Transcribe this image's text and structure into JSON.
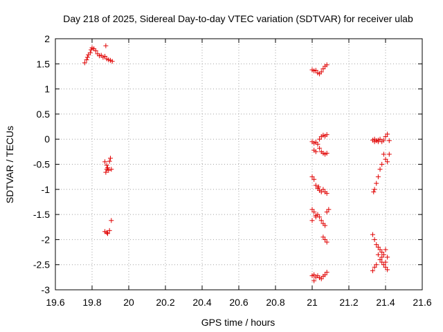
{
  "chart_data": {
    "type": "scatter",
    "title": "Day 218 of 2025, Sidereal Day-to-day VTEC variation (SDTVAR) for receiver ulab",
    "xlabel": "GPS time / hours",
    "ylabel": "SDTVAR / TECUs",
    "xlim": [
      19.6,
      21.6
    ],
    "ylim": [
      -3,
      2
    ],
    "xticks": [
      19.6,
      19.8,
      20,
      20.2,
      20.4,
      20.6,
      20.8,
      21,
      21.2,
      21.4,
      21.6
    ],
    "xtick_labels": [
      "19.6",
      "19.8",
      "20",
      "20.2",
      "20.4",
      "20.6",
      "20.8",
      "21",
      "21.2",
      "21.4",
      "21.6"
    ],
    "yticks": [
      -3,
      -2.5,
      -2,
      -1.5,
      -1,
      -0.5,
      0,
      0.5,
      1,
      1.5,
      2
    ],
    "ytick_labels": [
      "-3",
      "-2.5",
      "-2",
      "-1.5",
      "-1",
      "-0.5",
      "0",
      "0.5",
      "1",
      "1.5",
      "2"
    ],
    "grid": true,
    "marker": "+",
    "color": "#e00000",
    "series": [
      {
        "name": "SDTVAR",
        "points": [
          [
            19.76,
            1.52
          ],
          [
            19.77,
            1.58
          ],
          [
            19.775,
            1.63
          ],
          [
            19.78,
            1.68
          ],
          [
            19.79,
            1.72
          ],
          [
            19.795,
            1.78
          ],
          [
            19.8,
            1.82
          ],
          [
            19.81,
            1.8
          ],
          [
            19.82,
            1.76
          ],
          [
            19.83,
            1.7
          ],
          [
            19.84,
            1.66
          ],
          [
            19.85,
            1.67
          ],
          [
            19.86,
            1.63
          ],
          [
            19.87,
            1.65
          ],
          [
            19.875,
            1.86
          ],
          [
            19.88,
            1.6
          ],
          [
            19.89,
            1.58
          ],
          [
            19.9,
            1.57
          ],
          [
            19.91,
            1.55
          ],
          [
            19.87,
            -0.45
          ],
          [
            19.88,
            -0.6
          ],
          [
            19.875,
            -0.66
          ],
          [
            19.885,
            -0.57
          ],
          [
            19.89,
            -0.62
          ],
          [
            19.895,
            -0.44
          ],
          [
            19.9,
            -0.38
          ],
          [
            19.905,
            -0.6
          ],
          [
            19.88,
            -0.52
          ],
          [
            19.87,
            -1.84
          ],
          [
            19.88,
            -1.86
          ],
          [
            19.885,
            -1.88
          ],
          [
            19.895,
            -1.82
          ],
          [
            19.905,
            -1.62
          ],
          [
            21.0,
            1.38
          ],
          [
            21.01,
            1.36
          ],
          [
            21.02,
            1.37
          ],
          [
            21.03,
            1.32
          ],
          [
            21.04,
            1.3
          ],
          [
            21.05,
            1.34
          ],
          [
            21.06,
            1.4
          ],
          [
            21.07,
            1.45
          ],
          [
            21.08,
            1.48
          ],
          [
            21.0,
            -0.05
          ],
          [
            21.01,
            -0.08
          ],
          [
            21.02,
            -0.06
          ],
          [
            21.03,
            -0.1
          ],
          [
            21.04,
            0.0
          ],
          [
            21.05,
            0.05
          ],
          [
            21.06,
            0.08
          ],
          [
            21.07,
            0.06
          ],
          [
            21.08,
            0.09
          ],
          [
            21.04,
            -0.18
          ],
          [
            21.05,
            -0.25
          ],
          [
            21.06,
            -0.28
          ],
          [
            21.07,
            -0.3
          ],
          [
            21.08,
            -0.28
          ],
          [
            21.01,
            -0.22
          ],
          [
            21.02,
            -0.25
          ],
          [
            21.0,
            -0.75
          ],
          [
            21.01,
            -0.8
          ],
          [
            21.02,
            -0.92
          ],
          [
            21.03,
            -0.98
          ],
          [
            21.04,
            -1.02
          ],
          [
            21.05,
            -1.05
          ],
          [
            21.06,
            -1.0
          ],
          [
            21.07,
            -1.05
          ],
          [
            21.08,
            -1.08
          ],
          [
            21.035,
            -0.95
          ],
          [
            21.0,
            -1.4
          ],
          [
            21.01,
            -1.45
          ],
          [
            21.02,
            -1.52
          ],
          [
            21.03,
            -1.5
          ],
          [
            21.04,
            -1.55
          ],
          [
            21.05,
            -1.62
          ],
          [
            21.06,
            -1.68
          ],
          [
            21.07,
            -1.72
          ],
          [
            21.08,
            -1.45
          ],
          [
            21.09,
            -1.4
          ],
          [
            21.0,
            -1.62
          ],
          [
            21.02,
            -1.55
          ],
          [
            21.06,
            -1.95
          ],
          [
            21.07,
            -2.0
          ],
          [
            21.08,
            -2.05
          ],
          [
            21.0,
            -2.72
          ],
          [
            21.01,
            -2.82
          ],
          [
            21.02,
            -2.75
          ],
          [
            21.03,
            -2.72
          ],
          [
            21.04,
            -2.76
          ],
          [
            21.05,
            -2.78
          ],
          [
            21.06,
            -2.73
          ],
          [
            21.07,
            -2.7
          ],
          [
            21.08,
            -2.65
          ],
          [
            21.01,
            -2.7
          ],
          [
            21.33,
            -0.02
          ],
          [
            21.34,
            0.0
          ],
          [
            21.35,
            -0.03
          ],
          [
            21.36,
            -0.02
          ],
          [
            21.37,
            0.0
          ],
          [
            21.38,
            -0.05
          ],
          [
            21.39,
            -0.02
          ],
          [
            21.4,
            0.05
          ],
          [
            21.41,
            0.1
          ],
          [
            21.42,
            -0.03
          ],
          [
            21.34,
            -0.05
          ],
          [
            21.36,
            -0.05
          ],
          [
            21.39,
            -0.3
          ],
          [
            21.4,
            -0.4
          ],
          [
            21.41,
            -0.45
          ],
          [
            21.42,
            -0.3
          ],
          [
            21.38,
            -0.5
          ],
          [
            21.37,
            -0.6
          ],
          [
            21.36,
            -0.75
          ],
          [
            21.35,
            -0.88
          ],
          [
            21.34,
            -1.0
          ],
          [
            21.335,
            -1.05
          ],
          [
            21.33,
            -1.9
          ],
          [
            21.34,
            -2.0
          ],
          [
            21.35,
            -2.1
          ],
          [
            21.36,
            -2.15
          ],
          [
            21.37,
            -2.2
          ],
          [
            21.38,
            -2.25
          ],
          [
            21.39,
            -2.3
          ],
          [
            21.4,
            -2.2
          ],
          [
            21.41,
            -2.35
          ],
          [
            21.37,
            -2.4
          ],
          [
            21.38,
            -2.45
          ],
          [
            21.39,
            -2.5
          ],
          [
            21.4,
            -2.55
          ],
          [
            21.41,
            -2.6
          ],
          [
            21.35,
            -2.5
          ],
          [
            21.34,
            -2.55
          ],
          [
            21.33,
            -2.62
          ],
          [
            21.36,
            -2.3
          ],
          [
            21.4,
            -2.45
          ],
          [
            21.38,
            -2.35
          ]
        ]
      }
    ]
  }
}
